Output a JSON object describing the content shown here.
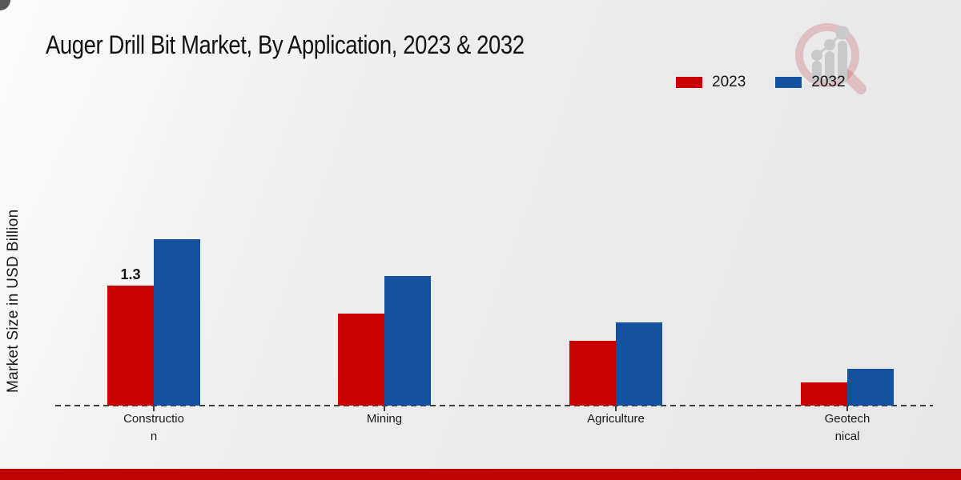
{
  "page": {
    "title": "Auger Drill Bit Market, By Application, 2023 & 2032"
  },
  "colors": {
    "series_2023": "#c90101",
    "series_2032": "#14519f",
    "bottom_band": "#bf0202",
    "background": "#ebebeb",
    "baseline": "#3f3f3f"
  },
  "icons": {
    "watermark": "magnifier-bar-chart-logo-icon"
  },
  "chart_data": {
    "type": "bar",
    "title": "Auger Drill Bit Market, By Application, 2023 & 2032",
    "xlabel": "",
    "ylabel": "Market Size in USD Billion",
    "categories": [
      "Construction",
      "Mining",
      "Agriculture",
      "Geotechnical"
    ],
    "category_label_lines": [
      [
        "Constructio",
        "n"
      ],
      [
        "Mining"
      ],
      [
        "Agriculture"
      ],
      [
        "Geotech",
        "nical"
      ]
    ],
    "series": [
      {
        "name": "2023",
        "color": "#c90101",
        "values": [
          1.3,
          1.0,
          0.7,
          0.25
        ]
      },
      {
        "name": "2032",
        "color": "#14519f",
        "values": [
          1.8,
          1.4,
          0.9,
          0.4
        ]
      }
    ],
    "annotations": [
      {
        "series": "2023",
        "category": "Construction",
        "text": "1.3"
      }
    ],
    "ylim": [
      0,
      2.0
    ],
    "grid": false,
    "axis_line": "dashed",
    "legend_position": "top-right"
  }
}
